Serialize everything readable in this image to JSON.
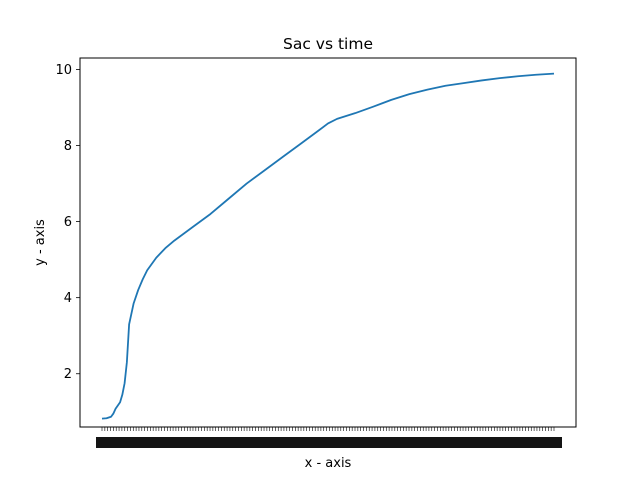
{
  "chart_data": {
    "type": "line",
    "title": "Sac vs time",
    "xlabel": "x - axis",
    "ylabel": "y - axis",
    "ylim": [
      0.6,
      10.3
    ],
    "yticks": [
      2,
      4,
      6,
      8,
      10
    ],
    "x_ticks_dense": true,
    "grid": false,
    "legend": "none",
    "series": [
      {
        "color": "#1f77b4",
        "points": [
          [
            0.0,
            0.82
          ],
          [
            0.01,
            0.83
          ],
          [
            0.02,
            0.87
          ],
          [
            0.025,
            0.95
          ],
          [
            0.03,
            1.08
          ],
          [
            0.04,
            1.25
          ],
          [
            0.045,
            1.45
          ],
          [
            0.05,
            1.75
          ],
          [
            0.055,
            2.3
          ],
          [
            0.06,
            3.3
          ],
          [
            0.07,
            3.85
          ],
          [
            0.08,
            4.2
          ],
          [
            0.09,
            4.48
          ],
          [
            0.1,
            4.72
          ],
          [
            0.12,
            5.05
          ],
          [
            0.14,
            5.3
          ],
          [
            0.16,
            5.5
          ],
          [
            0.2,
            5.85
          ],
          [
            0.24,
            6.2
          ],
          [
            0.28,
            6.6
          ],
          [
            0.32,
            7.0
          ],
          [
            0.36,
            7.35
          ],
          [
            0.4,
            7.7
          ],
          [
            0.44,
            8.05
          ],
          [
            0.48,
            8.4
          ],
          [
            0.5,
            8.58
          ],
          [
            0.52,
            8.7
          ],
          [
            0.56,
            8.85
          ],
          [
            0.6,
            9.02
          ],
          [
            0.64,
            9.2
          ],
          [
            0.68,
            9.35
          ],
          [
            0.72,
            9.47
          ],
          [
            0.76,
            9.57
          ],
          [
            0.8,
            9.64
          ],
          [
            0.84,
            9.71
          ],
          [
            0.88,
            9.77
          ],
          [
            0.92,
            9.82
          ],
          [
            0.96,
            9.86
          ],
          [
            1.0,
            9.89
          ]
        ]
      }
    ]
  }
}
